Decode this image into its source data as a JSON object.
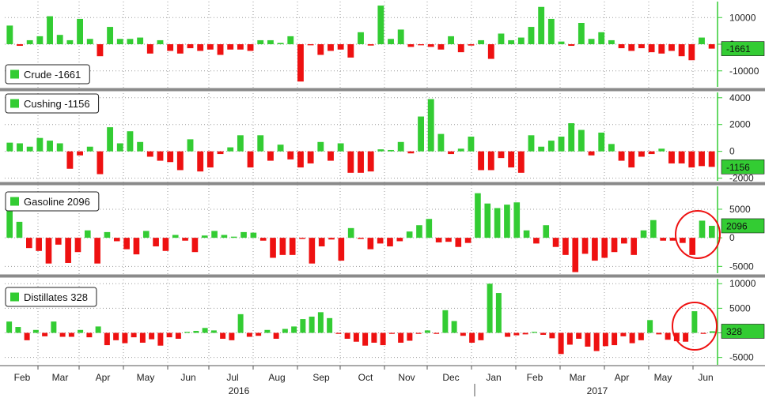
{
  "colors": {
    "positive": "#33cc33",
    "negative": "#ee1111",
    "separator": "#8a8a8a",
    "grid": "#9a9a9a",
    "annotation": "#ee1111"
  },
  "chart_data": {
    "type": "bar",
    "grid": true,
    "legend_position": "top-left",
    "x_month_labels": [
      "Feb",
      "Mar",
      "Apr",
      "May",
      "Jun",
      "Jul",
      "Aug",
      "Sep",
      "Oct",
      "Nov",
      "Dec",
      "Jan",
      "Feb",
      "Mar",
      "Apr",
      "May",
      "Jun"
    ],
    "x_year_labels": [
      "2016",
      "2017"
    ],
    "panels": [
      {
        "name": "Crude",
        "legend": "Crude -1661",
        "last_value": "-1661",
        "ylim": [
          -16000,
          16000
        ],
        "y_ticks": [
          "10000",
          "0",
          "-10000"
        ],
        "y_tick_values": [
          10000,
          0,
          -10000
        ],
        "values": [
          7000,
          -600,
          1500,
          3000,
          10500,
          3500,
          1500,
          9500,
          2000,
          -4500,
          6500,
          2000,
          2000,
          2500,
          -3500,
          1500,
          -2500,
          -3500,
          -1500,
          -2500,
          -2000,
          -4000,
          -2000,
          -2000,
          -2500,
          1500,
          1500,
          500,
          3000,
          -14000,
          -400,
          -4000,
          -2500,
          -2000,
          -5000,
          4500,
          -500,
          14500,
          2000,
          5500,
          -1000,
          -400,
          -1000,
          -2000,
          3000,
          -3000,
          -500,
          1500,
          -5500,
          4000,
          1500,
          2500,
          6500,
          14000,
          9500,
          1000,
          -600,
          8000,
          2000,
          4500,
          1500,
          -1500,
          -2500,
          -1500,
          -3000,
          -3500,
          -2500,
          -4500,
          -6000,
          2500,
          -1661
        ]
      },
      {
        "name": "Cushing",
        "legend": "Cushing -1156",
        "last_value": "-1156",
        "ylim": [
          -2200,
          4400
        ],
        "y_ticks": [
          "4000",
          "2000",
          "0",
          "-2000"
        ],
        "y_tick_values": [
          4000,
          2000,
          0,
          -2000
        ],
        "values": [
          650,
          600,
          350,
          1000,
          800,
          600,
          -1300,
          -300,
          350,
          -1700,
          1800,
          600,
          1500,
          700,
          -400,
          -700,
          -800,
          -1400,
          900,
          -1500,
          -1200,
          -200,
          300,
          1200,
          -1200,
          1200,
          -700,
          500,
          -600,
          -1200,
          -900,
          700,
          -700,
          600,
          -1600,
          -1600,
          -1500,
          150,
          100,
          700,
          -150,
          2600,
          3900,
          1300,
          -200,
          200,
          1100,
          -1400,
          -1400,
          -500,
          -1200,
          -1600,
          1200,
          350,
          800,
          1100,
          2100,
          1600,
          -300,
          1400,
          550,
          -700,
          -1200,
          -400,
          -200,
          200,
          -900,
          -900,
          -1200,
          -1100,
          -1156
        ]
      },
      {
        "name": "Gasoline",
        "legend": "Gasoline 2096",
        "last_value": "2096",
        "ylim": [
          -6200,
          9000
        ],
        "y_ticks": [
          "5000",
          "0",
          "-5000"
        ],
        "y_tick_values": [
          5000,
          0,
          -5000
        ],
        "values": [
          6000,
          2800,
          -1800,
          -2300,
          -4500,
          -1200,
          -4400,
          -2500,
          1300,
          -4500,
          1000,
          -600,
          -2000,
          -2900,
          1200,
          -1500,
          -2300,
          500,
          -500,
          -2500,
          400,
          1200,
          500,
          200,
          1000,
          900,
          -500,
          -3500,
          -3000,
          -3000,
          -200,
          -4500,
          -1500,
          -300,
          -4000,
          1700,
          -200,
          -2000,
          -1000,
          -1500,
          -600,
          1100,
          2200,
          3300,
          -800,
          -700,
          -1600,
          -900,
          7800,
          6000,
          5200,
          5800,
          6200,
          1300,
          -1000,
          2200,
          -1600,
          -3000,
          -6000,
          -2800,
          -4000,
          -3500,
          -2500,
          -1000,
          -3000,
          1300,
          3100,
          -500,
          -500,
          -900,
          -3000,
          3000,
          2096
        ]
      },
      {
        "name": "Distillates",
        "legend": "Distillates 328",
        "last_value": "328",
        "ylim": [
          -6500,
          11000
        ],
        "y_ticks": [
          "10000",
          "5000",
          "0",
          "-5000"
        ],
        "y_tick_values": [
          10000,
          5000,
          0,
          -5000
        ],
        "values": [
          2300,
          1200,
          -1500,
          600,
          -700,
          2300,
          -800,
          -800,
          600,
          -900,
          1300,
          -2500,
          -1500,
          -2100,
          -900,
          -2000,
          -1300,
          -2600,
          -900,
          -1200,
          200,
          400,
          1000,
          500,
          -1200,
          -1500,
          3800,
          -800,
          -600,
          600,
          -1200,
          800,
          1300,
          2800,
          3300,
          4200,
          3000,
          -200,
          -1200,
          -1800,
          -2600,
          -2000,
          -2500,
          -200,
          -2000,
          -1600,
          -200,
          500,
          -200,
          4600,
          2400,
          -600,
          -2000,
          -1500,
          10000,
          8100,
          -800,
          -500,
          -300,
          200,
          -400,
          -1100,
          -4300,
          -2400,
          -1200,
          -2800,
          -3700,
          -2700,
          -2500,
          -700,
          -2100,
          -1500,
          2600,
          -300,
          -1400,
          -1700,
          -1800,
          4400,
          -200,
          328
        ]
      }
    ]
  }
}
